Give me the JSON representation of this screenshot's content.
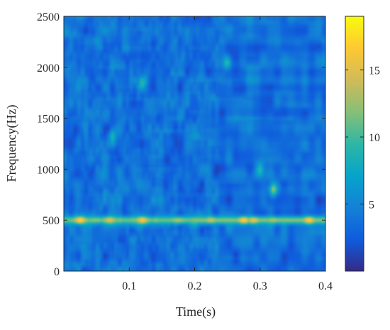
{
  "chart_data": {
    "type": "heatmap",
    "title": "",
    "xlabel": "Time(s)",
    "ylabel": "Frequency(Hz)",
    "xlim": [
      0,
      0.4
    ],
    "ylim": [
      0,
      2500
    ],
    "x_ticks": [
      0.1,
      0.2,
      0.3,
      0.4
    ],
    "x_tick_labels": [
      "0.1",
      "0.2",
      "0.3",
      "0.4"
    ],
    "y_ticks": [
      0,
      500,
      1000,
      1500,
      2000,
      2500
    ],
    "y_tick_labels": [
      "0",
      "500",
      "1000",
      "1500",
      "2000",
      "2500"
    ],
    "colormap": "parula",
    "color_range": [
      0,
      19
    ],
    "colorbar_ticks": [
      5,
      10,
      15
    ],
    "colorbar_tick_labels": [
      "5",
      "10",
      "15"
    ],
    "background_level_range": [
      1,
      6
    ],
    "band": {
      "frequency": 500,
      "level": 11,
      "peaks": [
        {
          "time": 0.025,
          "level": 17.5
        },
        {
          "time": 0.07,
          "level": 15
        },
        {
          "time": 0.12,
          "level": 16.5
        },
        {
          "time": 0.175,
          "level": 13
        },
        {
          "time": 0.225,
          "level": 14
        },
        {
          "time": 0.275,
          "level": 17
        },
        {
          "time": 0.29,
          "level": 15.5
        },
        {
          "time": 0.32,
          "level": 13
        },
        {
          "time": 0.375,
          "level": 17
        }
      ]
    },
    "hotspots": [
      {
        "time": 0.32,
        "frequency": 800,
        "level": 12
      },
      {
        "time": 0.075,
        "frequency": 1330,
        "level": 9
      },
      {
        "time": 0.12,
        "frequency": 1850,
        "level": 9
      },
      {
        "time": 0.25,
        "frequency": 2050,
        "level": 10
      },
      {
        "time": 0.3,
        "frequency": 1000,
        "level": 9
      }
    ],
    "grid": false,
    "legend": "none"
  },
  "colors": {
    "axis": "#262626",
    "background": "#ffffff",
    "parula_stops": [
      "#352a87",
      "#0f5cdd",
      "#1481d6",
      "#06a4ca",
      "#2eb7a4",
      "#87bf77",
      "#d1bb59",
      "#fec832",
      "#f9fb0e"
    ]
  }
}
